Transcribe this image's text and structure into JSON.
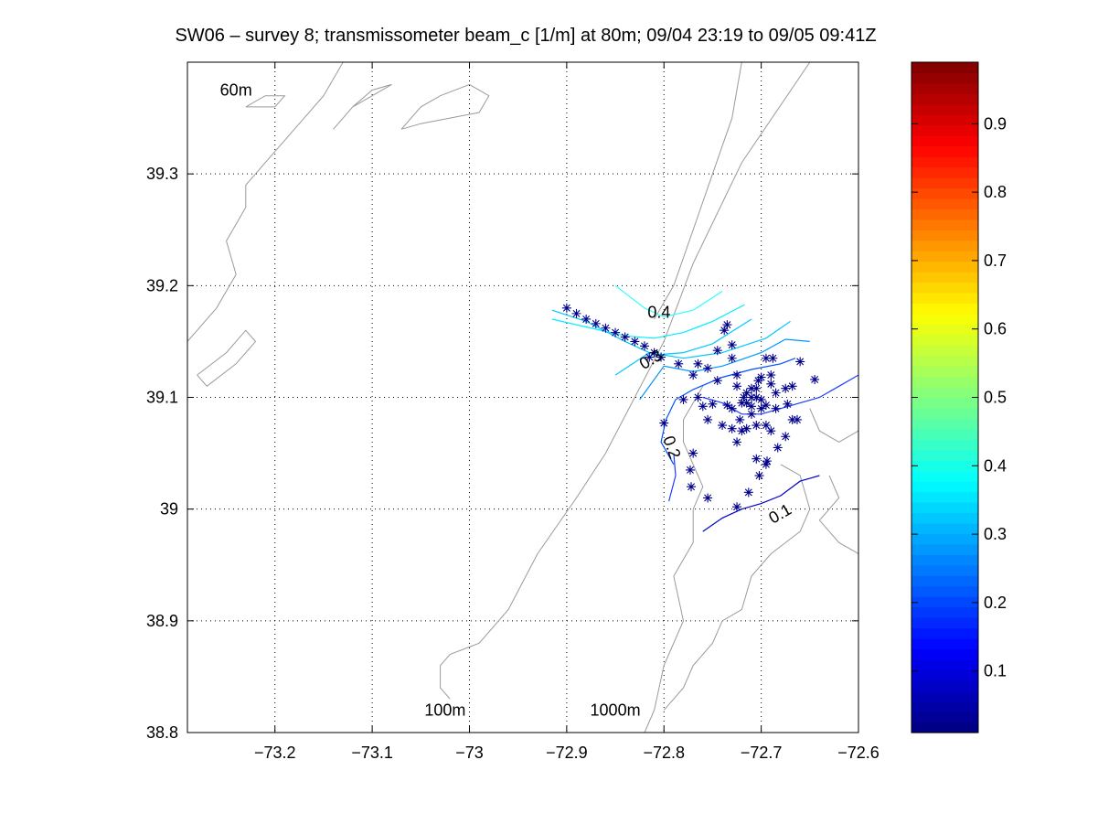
{
  "title": "SW06 – survey 8; transmissometer beam_c [1/m] at 80m; 09/04 23:19 to 09/05 09:41Z",
  "chart_data": {
    "type": "contour",
    "title": "SW06 – survey 8; transmissometer beam_c [1/m] at 80m; 09/04 23:19 to 09/05 09:41Z",
    "xlabel": "",
    "ylabel": "",
    "xlim": [
      -73.29,
      -72.6
    ],
    "ylim": [
      38.8,
      39.4
    ],
    "xticks": [
      -73.2,
      -73.1,
      -73.0,
      -72.9,
      -72.8,
      -72.7,
      -72.6
    ],
    "xtick_labels": [
      "−73.2",
      "−73.1",
      "−73",
      "−72.9",
      "−72.8",
      "−72.7",
      "−72.6"
    ],
    "yticks": [
      38.8,
      38.9,
      39.0,
      39.1,
      39.2,
      39.3
    ],
    "ytick_labels": [
      "38.8",
      "38.9",
      "39",
      "39.1",
      "39.2",
      "39.3"
    ],
    "grid": true,
    "colorbar": {
      "range": [
        0.01,
        0.99
      ],
      "ticks": [
        0.1,
        0.2,
        0.3,
        0.4,
        0.5,
        0.6,
        0.7,
        0.8,
        0.9
      ],
      "tick_labels": [
        "0.1",
        "0.2",
        "0.3",
        "0.4",
        "0.5",
        "0.6",
        "0.7",
        "0.8",
        "0.9"
      ],
      "colormap": "jet"
    },
    "isobath_labels": [
      {
        "text": "60m",
        "x": -73.24,
        "y": 39.37
      },
      {
        "text": "100m",
        "x": -73.025,
        "y": 38.815
      },
      {
        "text": "1000m",
        "x": -72.85,
        "y": 38.815
      }
    ],
    "contour_labels": [
      {
        "text": "0.4",
        "x": -72.805,
        "y": 39.175,
        "rot": 0
      },
      {
        "text": "0.3",
        "x": -72.813,
        "y": 39.133,
        "rot": -30
      },
      {
        "text": "0.2",
        "x": -72.793,
        "y": 39.055,
        "rot": 70
      },
      {
        "text": "0.1",
        "x": -72.68,
        "y": 38.995,
        "rot": -30
      }
    ],
    "contours": [
      {
        "level": 0.4,
        "color": "#33ffff",
        "points": [
          [
            -72.85,
            39.2
          ],
          [
            -72.82,
            39.18
          ],
          [
            -72.8,
            39.172
          ],
          [
            -72.77,
            39.178
          ],
          [
            -72.74,
            39.195
          ]
        ]
      },
      {
        "level": 0.35,
        "color": "#00f0ff",
        "points": [
          [
            -72.915,
            39.17
          ],
          [
            -72.88,
            39.163
          ],
          [
            -72.84,
            39.155
          ],
          [
            -72.81,
            39.153
          ],
          [
            -72.78,
            39.158
          ],
          [
            -72.75,
            39.168
          ],
          [
            -72.717,
            39.183
          ]
        ]
      },
      {
        "level": 0.3,
        "color": "#00c8ff",
        "points": [
          [
            -72.915,
            39.178
          ],
          [
            -72.88,
            39.168
          ],
          [
            -72.84,
            39.15
          ],
          [
            -72.81,
            39.138
          ],
          [
            -72.78,
            39.14
          ],
          [
            -72.75,
            39.148
          ],
          [
            -72.71,
            39.17
          ]
        ]
      },
      {
        "level": 0.3,
        "color": "#00c8ff",
        "points": [
          [
            -72.85,
            39.12
          ],
          [
            -72.815,
            39.14
          ],
          [
            -72.78,
            39.135
          ],
          [
            -72.74,
            39.14
          ],
          [
            -72.695,
            39.153
          ],
          [
            -72.67,
            39.168
          ]
        ]
      },
      {
        "level": 0.25,
        "color": "#0096ff",
        "points": [
          [
            -72.825,
            39.098
          ],
          [
            -72.8,
            39.128
          ],
          [
            -72.77,
            39.123
          ],
          [
            -72.74,
            39.128
          ],
          [
            -72.7,
            39.14
          ],
          [
            -72.675,
            39.152
          ],
          [
            -72.65,
            39.15
          ]
        ]
      },
      {
        "level": 0.2,
        "color": "#0050ff",
        "points": [
          [
            -72.79,
            39.04
          ],
          [
            -72.803,
            39.06
          ],
          [
            -72.798,
            39.08
          ],
          [
            -72.788,
            39.098
          ],
          [
            -72.77,
            39.107
          ],
          [
            -72.74,
            39.118
          ],
          [
            -72.71,
            39.125
          ],
          [
            -72.68,
            39.13
          ],
          [
            -72.665,
            39.135
          ]
        ]
      },
      {
        "level": 0.15,
        "color": "#1e3cff",
        "points": [
          [
            -72.795,
            39.007
          ],
          [
            -72.788,
            39.03
          ],
          [
            -72.79,
            39.05
          ]
        ]
      },
      {
        "level": 0.15,
        "color": "#1e3cff",
        "points": [
          [
            -72.76,
            39.1
          ],
          [
            -72.74,
            39.095
          ],
          [
            -72.72,
            39.085
          ],
          [
            -72.7,
            39.085
          ],
          [
            -72.68,
            39.09
          ],
          [
            -72.66,
            39.095
          ],
          [
            -72.64,
            39.1
          ],
          [
            -72.62,
            39.11
          ],
          [
            -72.6,
            39.12
          ]
        ]
      },
      {
        "level": 0.1,
        "color": "#0000c8",
        "points": [
          [
            -72.76,
            38.98
          ],
          [
            -72.74,
            38.992
          ],
          [
            -72.72,
            39.0
          ],
          [
            -72.7,
            39.005
          ],
          [
            -72.68,
            39.012
          ],
          [
            -72.66,
            39.025
          ],
          [
            -72.64,
            39.03
          ]
        ]
      }
    ],
    "stations": [
      [
        -72.9,
        39.18
      ],
      [
        -72.89,
        39.175
      ],
      [
        -72.88,
        39.17
      ],
      [
        -72.87,
        39.166
      ],
      [
        -72.86,
        39.162
      ],
      [
        -72.85,
        39.158
      ],
      [
        -72.84,
        39.154
      ],
      [
        -72.83,
        39.15
      ],
      [
        -72.82,
        39.146
      ],
      [
        -72.81,
        39.14
      ],
      [
        -72.803,
        39.136
      ],
      [
        -72.815,
        39.136
      ],
      [
        -72.735,
        39.165
      ],
      [
        -72.738,
        39.16
      ],
      [
        -72.73,
        39.147
      ],
      [
        -72.745,
        39.142
      ],
      [
        -72.785,
        39.13
      ],
      [
        -72.765,
        39.13
      ],
      [
        -72.755,
        39.126
      ],
      [
        -72.77,
        39.12
      ],
      [
        -72.745,
        39.115
      ],
      [
        -72.73,
        39.135
      ],
      [
        -72.725,
        39.12
      ],
      [
        -72.695,
        39.135
      ],
      [
        -72.688,
        39.135
      ],
      [
        -72.66,
        39.132
      ],
      [
        -72.645,
        39.116
      ],
      [
        -72.675,
        39.108
      ],
      [
        -72.668,
        39.11
      ],
      [
        -72.685,
        39.104
      ],
      [
        -72.7,
        39.118
      ],
      [
        -72.703,
        39.115
      ],
      [
        -72.69,
        39.12
      ],
      [
        -72.71,
        39.108
      ],
      [
        -72.715,
        39.104
      ],
      [
        -72.718,
        39.1
      ],
      [
        -72.705,
        39.1
      ],
      [
        -72.7,
        39.098
      ],
      [
        -72.695,
        39.093
      ],
      [
        -72.685,
        39.09
      ],
      [
        -72.673,
        39.094
      ],
      [
        -72.663,
        39.08
      ],
      [
        -72.668,
        39.08
      ],
      [
        -72.675,
        39.065
      ],
      [
        -72.69,
        39.07
      ],
      [
        -72.705,
        39.075
      ],
      [
        -72.715,
        39.072
      ],
      [
        -72.722,
        39.08
      ],
      [
        -72.73,
        39.09
      ],
      [
        -72.735,
        39.093
      ],
      [
        -72.75,
        39.094
      ],
      [
        -72.76,
        39.092
      ],
      [
        -72.765,
        39.1
      ],
      [
        -72.78,
        39.098
      ],
      [
        -72.755,
        39.08
      ],
      [
        -72.74,
        39.075
      ],
      [
        -72.73,
        39.072
      ],
      [
        -72.725,
        39.06
      ],
      [
        -72.72,
        39.07
      ],
      [
        -72.71,
        39.085
      ],
      [
        -72.7,
        39.09
      ],
      [
        -72.715,
        39.095
      ],
      [
        -72.71,
        39.092
      ],
      [
        -72.72,
        39.095
      ],
      [
        -72.725,
        39.11
      ],
      [
        -72.8,
        39.077
      ],
      [
        -72.77,
        39.05
      ],
      [
        -72.773,
        39.035
      ],
      [
        -72.772,
        39.02
      ],
      [
        -72.755,
        39.01
      ],
      [
        -72.725,
        39.002
      ],
      [
        -72.713,
        39.015
      ],
      [
        -72.702,
        39.03
      ],
      [
        -72.705,
        39.045
      ],
      [
        -72.695,
        39.04
      ],
      [
        -72.694,
        39.043
      ],
      [
        -72.683,
        39.055
      ],
      [
        -72.695,
        39.075
      ],
      [
        -72.71,
        39.1
      ],
      [
        -72.705,
        39.108
      ],
      [
        -72.69,
        39.112
      ]
    ],
    "isobaths": [
      [
        [
          -72.65,
          39.4
        ],
        [
          -72.72,
          39.31
        ],
        [
          -72.77,
          39.22
        ],
        [
          -72.8,
          39.15
        ],
        [
          -72.83,
          39.1
        ],
        [
          -72.86,
          39.05
        ],
        [
          -72.89,
          39.01
        ],
        [
          -72.93,
          38.96
        ],
        [
          -72.96,
          38.91
        ],
        [
          -72.99,
          38.88
        ],
        [
          -73.02,
          38.87
        ],
        [
          -73.03,
          38.86
        ],
        [
          -73.03,
          38.84
        ],
        [
          -73.02,
          38.83
        ]
      ],
      [
        [
          -72.72,
          39.4
        ],
        [
          -72.73,
          39.35
        ],
        [
          -72.75,
          39.3
        ],
        [
          -72.77,
          39.25
        ],
        [
          -72.79,
          39.2
        ],
        [
          -72.81,
          39.17
        ]
      ],
      [
        [
          -72.76,
          39.11
        ],
        [
          -72.78,
          39.08
        ],
        [
          -72.78,
          39.06
        ],
        [
          -72.77,
          39.04
        ],
        [
          -72.76,
          39.02
        ],
        [
          -72.77,
          39.0
        ],
        [
          -72.77,
          38.97
        ],
        [
          -72.79,
          38.94
        ],
        [
          -72.78,
          38.9
        ],
        [
          -72.8,
          38.86
        ],
        [
          -72.81,
          38.82
        ],
        [
          -72.82,
          38.8
        ]
      ],
      [
        [
          -72.68,
          39.04
        ],
        [
          -72.66,
          39.03
        ],
        [
          -72.65,
          39.0
        ],
        [
          -72.66,
          38.98
        ],
        [
          -72.69,
          38.96
        ],
        [
          -72.71,
          38.94
        ],
        [
          -72.72,
          38.91
        ],
        [
          -72.74,
          38.9
        ],
        [
          -72.75,
          38.88
        ],
        [
          -72.77,
          38.86
        ],
        [
          -72.78,
          38.84
        ],
        [
          -72.8,
          38.82
        ]
      ],
      [
        [
          -72.63,
          39.03
        ],
        [
          -72.62,
          39.01
        ],
        [
          -72.64,
          38.99
        ],
        [
          -72.62,
          38.97
        ],
        [
          -72.6,
          38.96
        ]
      ],
      [
        [
          -72.65,
          39.09
        ],
        [
          -72.64,
          39.07
        ],
        [
          -72.62,
          39.06
        ],
        [
          -72.6,
          39.07
        ]
      ],
      [
        [
          -73.29,
          39.15
        ],
        [
          -73.26,
          39.18
        ],
        [
          -73.24,
          39.21
        ],
        [
          -73.25,
          39.24
        ],
        [
          -73.23,
          39.27
        ],
        [
          -73.23,
          39.29
        ],
        [
          -73.2,
          39.32
        ],
        [
          -73.17,
          39.35
        ],
        [
          -73.15,
          39.37
        ],
        [
          -73.13,
          39.4
        ]
      ],
      [
        [
          -73.28,
          39.12
        ],
        [
          -73.25,
          39.14
        ],
        [
          -73.23,
          39.16
        ],
        [
          -73.22,
          39.15
        ],
        [
          -73.24,
          39.13
        ],
        [
          -73.27,
          39.11
        ],
        [
          -73.28,
          39.12
        ]
      ],
      [
        [
          -73.14,
          39.34
        ],
        [
          -73.12,
          39.36
        ],
        [
          -73.1,
          39.37
        ],
        [
          -73.08,
          39.38
        ],
        [
          -73.1,
          39.375
        ],
        [
          -73.12,
          39.36
        ],
        [
          -73.14,
          39.34
        ]
      ],
      [
        [
          -73.07,
          39.34
        ],
        [
          -73.05,
          39.36
        ],
        [
          -73.03,
          39.37
        ],
        [
          -73.0,
          39.38
        ],
        [
          -72.98,
          39.37
        ],
        [
          -72.99,
          39.355
        ],
        [
          -73.02,
          39.35
        ],
        [
          -73.05,
          39.345
        ],
        [
          -73.07,
          39.34
        ]
      ],
      [
        [
          -73.23,
          39.36
        ],
        [
          -73.21,
          39.37
        ],
        [
          -73.19,
          39.37
        ],
        [
          -73.2,
          39.36
        ],
        [
          -73.23,
          39.36
        ]
      ]
    ]
  }
}
